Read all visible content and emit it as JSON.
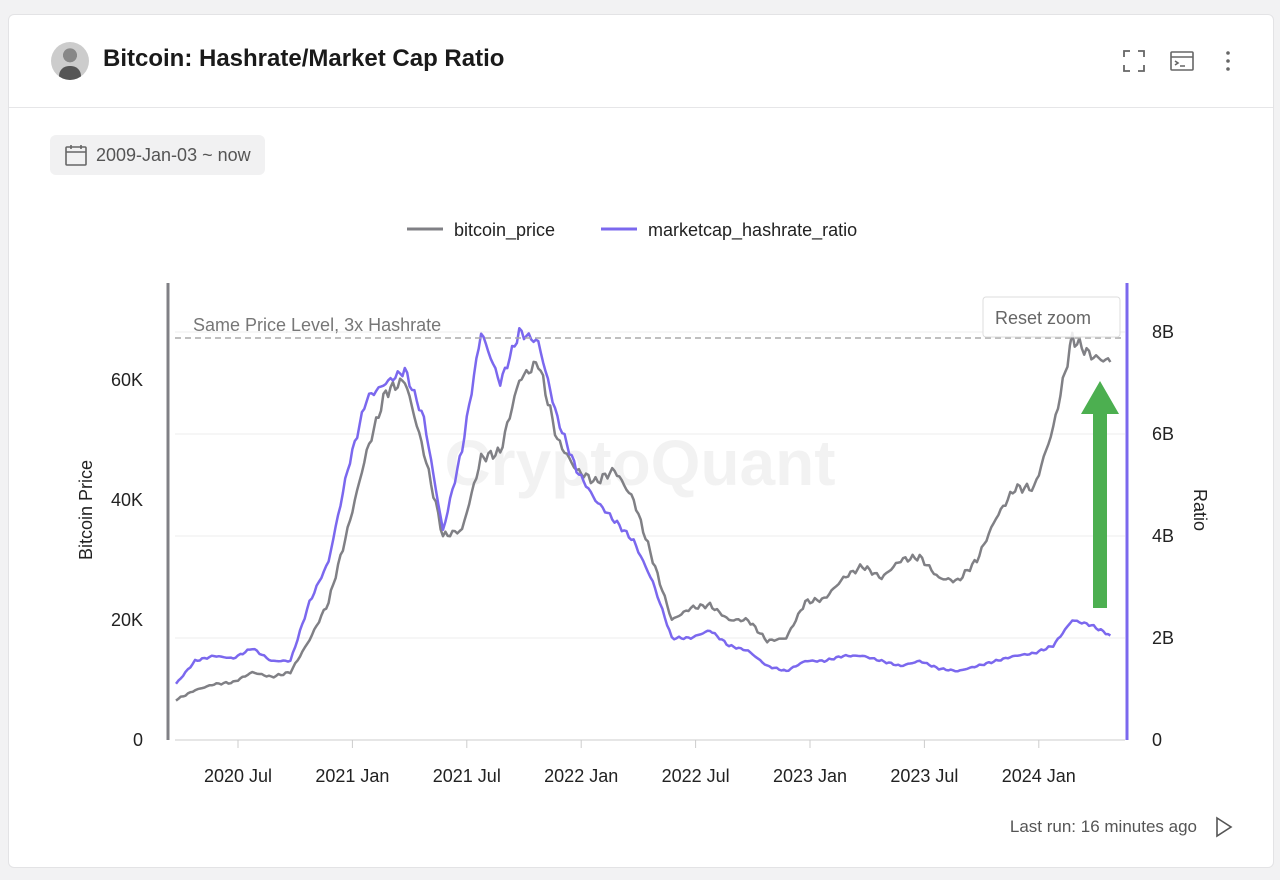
{
  "header": {
    "title": "Bitcoin: Hashrate/Market Cap Ratio",
    "icons": [
      "fullscreen-icon",
      "terminal-icon",
      "more-vertical-icon"
    ]
  },
  "date_range": {
    "label": "2009-Jan-03 ~ now"
  },
  "footer": {
    "last_run": "Last run: 16 minutes ago"
  },
  "chart": {
    "reset_zoom": "Reset zoom",
    "watermark": "CryptoQuant"
  },
  "colors": {
    "price": "#808085",
    "ratio": "#7b68ee",
    "arrow": "#4caf50"
  },
  "chart_data": {
    "type": "line",
    "legend": [
      "bitcoin_price",
      "marketcap_hashrate_ratio"
    ],
    "legend_position": "top-center",
    "ylabel_left": "Bitcoin Price",
    "ylabel_right": "Ratio",
    "ylim_left": [
      0,
      75000
    ],
    "ylim_right": [
      0,
      8800000000
    ],
    "yticks_left": [
      {
        "v": 0,
        "label": "0"
      },
      {
        "v": 20000,
        "label": "20K"
      },
      {
        "v": 40000,
        "label": "40K"
      },
      {
        "v": 60000,
        "label": "60K"
      }
    ],
    "yticks_right": [
      {
        "v": 0,
        "label": "0"
      },
      {
        "v": 2,
        "label": "2B"
      },
      {
        "v": 4,
        "label": "4B"
      },
      {
        "v": 6,
        "label": "6B"
      },
      {
        "v": 8,
        "label": "8B"
      }
    ],
    "xticks": [
      "2020 Jul",
      "2021 Jan",
      "2021 Jul",
      "2022 Jan",
      "2022 Jul",
      "2023 Jan",
      "2023 Jul",
      "2024 Jan"
    ],
    "x": [
      "2020-04",
      "2020-05",
      "2020-06",
      "2020-07",
      "2020-08",
      "2020-09",
      "2020-10",
      "2020-11",
      "2020-12",
      "2021-01",
      "2021-02",
      "2021-03",
      "2021-04",
      "2021-05",
      "2021-06",
      "2021-07",
      "2021-08",
      "2021-09",
      "2021-10",
      "2021-11",
      "2021-12",
      "2022-01",
      "2022-02",
      "2022-03",
      "2022-04",
      "2022-05",
      "2022-06",
      "2022-07",
      "2022-08",
      "2022-09",
      "2022-10",
      "2022-11",
      "2022-12",
      "2023-01",
      "2023-02",
      "2023-03",
      "2023-04",
      "2023-05",
      "2023-06",
      "2023-07",
      "2023-08",
      "2023-09",
      "2023-10",
      "2023-11",
      "2023-12",
      "2024-01",
      "2024-02",
      "2024-03",
      "2024-04",
      "2024-05"
    ],
    "series": [
      {
        "name": "bitcoin_price",
        "axis": "left",
        "values": [
          6700,
          8300,
          9300,
          9600,
          11300,
          10500,
          11300,
          16700,
          23000,
          35000,
          48000,
          58000,
          60000,
          48000,
          34000,
          35000,
          47000,
          48000,
          60000,
          63000,
          50000,
          45000,
          43000,
          45000,
          40000,
          30000,
          20000,
          22000,
          22500,
          20000,
          20000,
          16500,
          17000,
          23000,
          23500,
          27000,
          29000,
          27000,
          30000,
          30500,
          27000,
          26500,
          30000,
          37000,
          42000,
          42000,
          52000,
          67000,
          64000,
          63000
        ]
      },
      {
        "name": "marketcap_hashrate_ratio",
        "axis": "right",
        "unit": "B",
        "values": [
          1.1,
          1.55,
          1.65,
          1.6,
          1.8,
          1.55,
          1.55,
          2.7,
          3.5,
          5.3,
          6.7,
          7.0,
          7.25,
          6.3,
          4.1,
          5.7,
          8.0,
          7.0,
          8.0,
          7.8,
          6.3,
          5.3,
          4.7,
          4.3,
          3.9,
          3.1,
          2.0,
          2.0,
          2.15,
          1.85,
          1.75,
          1.45,
          1.35,
          1.55,
          1.55,
          1.65,
          1.65,
          1.55,
          1.45,
          1.55,
          1.4,
          1.35,
          1.45,
          1.55,
          1.65,
          1.7,
          1.85,
          2.35,
          2.25,
          2.05
        ]
      }
    ],
    "annotations": [
      {
        "type": "hline",
        "axis": "left",
        "value": 67000,
        "label": "Same Price Level, 3x Hashrate"
      },
      {
        "type": "arrow",
        "label": "",
        "from_ratio": 2.6,
        "to_ratio": 7.0
      }
    ]
  }
}
